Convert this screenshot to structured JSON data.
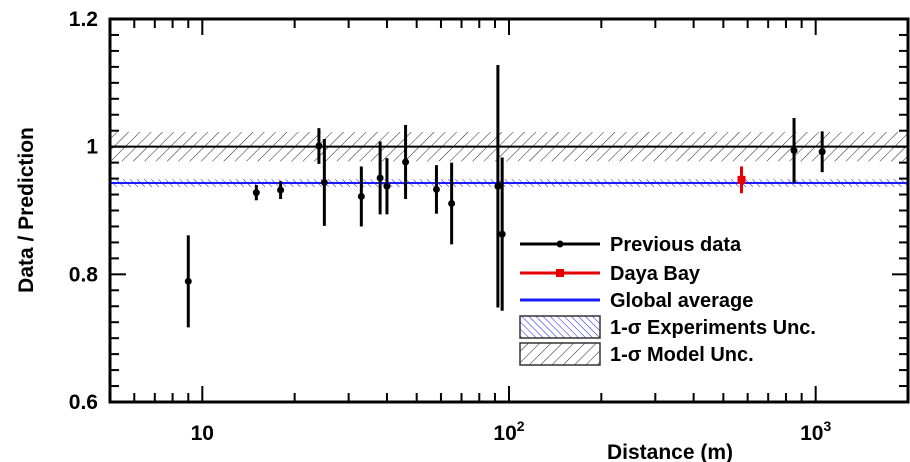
{
  "chart_data": {
    "type": "scatter",
    "xlabel": "Distance (m)",
    "ylabel": "Data / Prediction",
    "x_scale": "log",
    "xlim": [
      5,
      2000
    ],
    "ylim": [
      0.6,
      1.2
    ],
    "x_ticks": [
      {
        "value": 10,
        "base": "10",
        "exp": ""
      },
      {
        "value": 100,
        "base": "10",
        "exp": "2"
      },
      {
        "value": 1000,
        "base": "10",
        "exp": "3"
      }
    ],
    "y_ticks": [
      "0.6",
      "0.8",
      "1",
      "1.2"
    ],
    "reference_line": {
      "y": 1.0,
      "color": "#000000"
    },
    "model_band": {
      "low": 0.977,
      "high": 1.023
    },
    "global_average": {
      "y": 0.943,
      "band_low": 0.937,
      "band_high": 0.949,
      "color": "#1a1aff"
    },
    "series": [
      {
        "name": "Previous data",
        "color": "#000000",
        "marker": "circle",
        "points": [
          {
            "x": 9,
            "y": 0.789,
            "err": 0.072
          },
          {
            "x": 15,
            "y": 0.928,
            "err": 0.012
          },
          {
            "x": 18,
            "y": 0.932,
            "err": 0.014
          },
          {
            "x": 24,
            "y": 1.001,
            "err": 0.028
          },
          {
            "x": 25,
            "y": 0.944,
            "err": 0.068
          },
          {
            "x": 33,
            "y": 0.922,
            "err": 0.047
          },
          {
            "x": 38,
            "y": 0.951,
            "err": 0.057
          },
          {
            "x": 40,
            "y": 0.938,
            "err": 0.044
          },
          {
            "x": 46,
            "y": 0.976,
            "err": 0.058
          },
          {
            "x": 58,
            "y": 0.933,
            "err": 0.038
          },
          {
            "x": 65,
            "y": 0.911,
            "err": 0.064
          },
          {
            "x": 92,
            "y": 0.938,
            "err": 0.19
          },
          {
            "x": 95,
            "y": 0.863,
            "err": 0.12
          },
          {
            "x": 850,
            "y": 0.994,
            "err": 0.051
          },
          {
            "x": 1050,
            "y": 0.992,
            "err": 0.032
          }
        ]
      },
      {
        "name": "Daya Bay",
        "color": "#e60000",
        "marker": "square",
        "points": [
          {
            "x": 573,
            "y": 0.948,
            "err": 0.021
          }
        ]
      }
    ],
    "legend": {
      "placement": "lower-right",
      "entries": [
        {
          "label": "Previous data",
          "kind": "line-circle",
          "color": "#000000"
        },
        {
          "label": "Daya Bay",
          "kind": "line-square",
          "color": "#e60000"
        },
        {
          "label": "Global average",
          "kind": "line",
          "color": "#1a1aff"
        },
        {
          "label": "1-σ Experiments Unc.",
          "kind": "hatch-blue",
          "color": "#1a1aff"
        },
        {
          "label": "1-σ Model Unc.",
          "kind": "hatch-black",
          "color": "#000000"
        }
      ]
    }
  }
}
